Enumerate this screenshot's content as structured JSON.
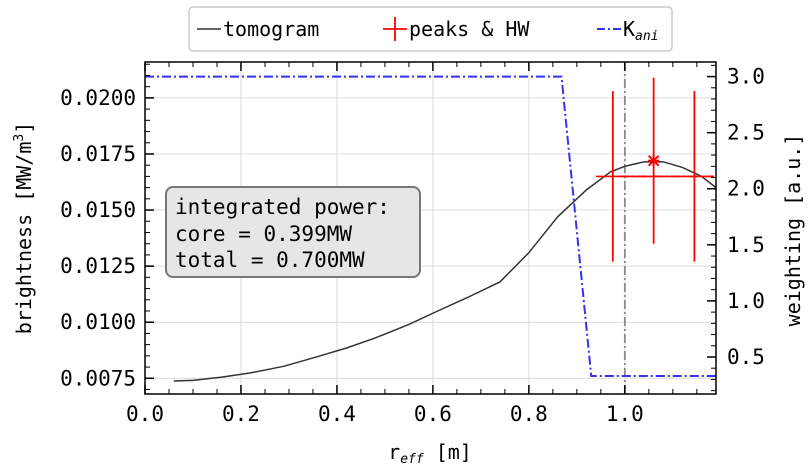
{
  "chart_data": {
    "type": "line",
    "xlabel": "r",
    "xlabel_sub": "eff",
    "xlabel_unit": " [m]",
    "ylabel": "brightness [MW/m",
    "ylabel_sup": "3",
    "ylabel_end": "]",
    "y2label": "weighting [a.u.]",
    "xlim": [
      0.0,
      1.19
    ],
    "ylim": [
      0.0068,
      0.0216
    ],
    "y2lim": [
      0.17,
      3.13
    ],
    "xticks": [
      0.0,
      0.2,
      0.4,
      0.6,
      0.8,
      1.0
    ],
    "xtick_labels": [
      "0.0",
      "0.2",
      "0.4",
      "0.6",
      "0.8",
      "1.0"
    ],
    "yticks": [
      0.0075,
      0.01,
      0.0125,
      0.015,
      0.0175,
      0.02
    ],
    "ytick_labels": [
      "0.0075",
      "0.0100",
      "0.0125",
      "0.0150",
      "0.0175",
      "0.0200"
    ],
    "y2ticks": [
      0.5,
      1.0,
      1.5,
      2.0,
      2.5,
      3.0
    ],
    "y2tick_labels": [
      "0.5",
      "1.0",
      "1.5",
      "2.0",
      "2.5",
      "3.0"
    ],
    "grid": true,
    "legend_placement": "top-center, outside",
    "vline_x": 1.0,
    "series": [
      {
        "name": "tomogram",
        "color": "#333333",
        "axis": "left",
        "x": [
          0.06,
          0.1,
          0.16,
          0.22,
          0.29,
          0.36,
          0.42,
          0.48,
          0.55,
          0.61,
          0.67,
          0.74,
          0.8,
          0.86,
          0.92,
          0.97,
          1.0,
          1.04,
          1.08,
          1.12,
          1.16,
          1.19
        ],
        "y": [
          0.00738,
          0.00741,
          0.00755,
          0.00774,
          0.00804,
          0.00847,
          0.00885,
          0.0093,
          0.0099,
          0.0105,
          0.01108,
          0.0118,
          0.0131,
          0.0147,
          0.0159,
          0.0167,
          0.01695,
          0.01715,
          0.01715,
          0.0169,
          0.0165,
          0.016
        ]
      },
      {
        "name": "peaks & HW",
        "color": "#ff0000",
        "axis": "left",
        "peak": {
          "x": 1.06,
          "y": 0.0172,
          "xerr": 0.012,
          "yerr": 0.0037
        },
        "halfwidth": {
          "y": 0.0165,
          "xleft": 0.99,
          "xright": 1.13,
          "x_caps": [
            0.975,
            1.145
          ],
          "yerr": 0.0038
        },
        "line_x": [
          0.99,
          1.06,
          1.13,
          1.19
        ]
      },
      {
        "name": "K",
        "name_sub": "ani",
        "color": "#3333ee",
        "axis": "right",
        "x": [
          0.0,
          0.868,
          0.93,
          1.19
        ],
        "y": [
          3.0,
          3.0,
          0.33,
          0.33
        ]
      }
    ],
    "annotation": {
      "line1": "integrated power:",
      "line2": "core = 0.399MW",
      "line3": "total = 0.700MW"
    }
  }
}
